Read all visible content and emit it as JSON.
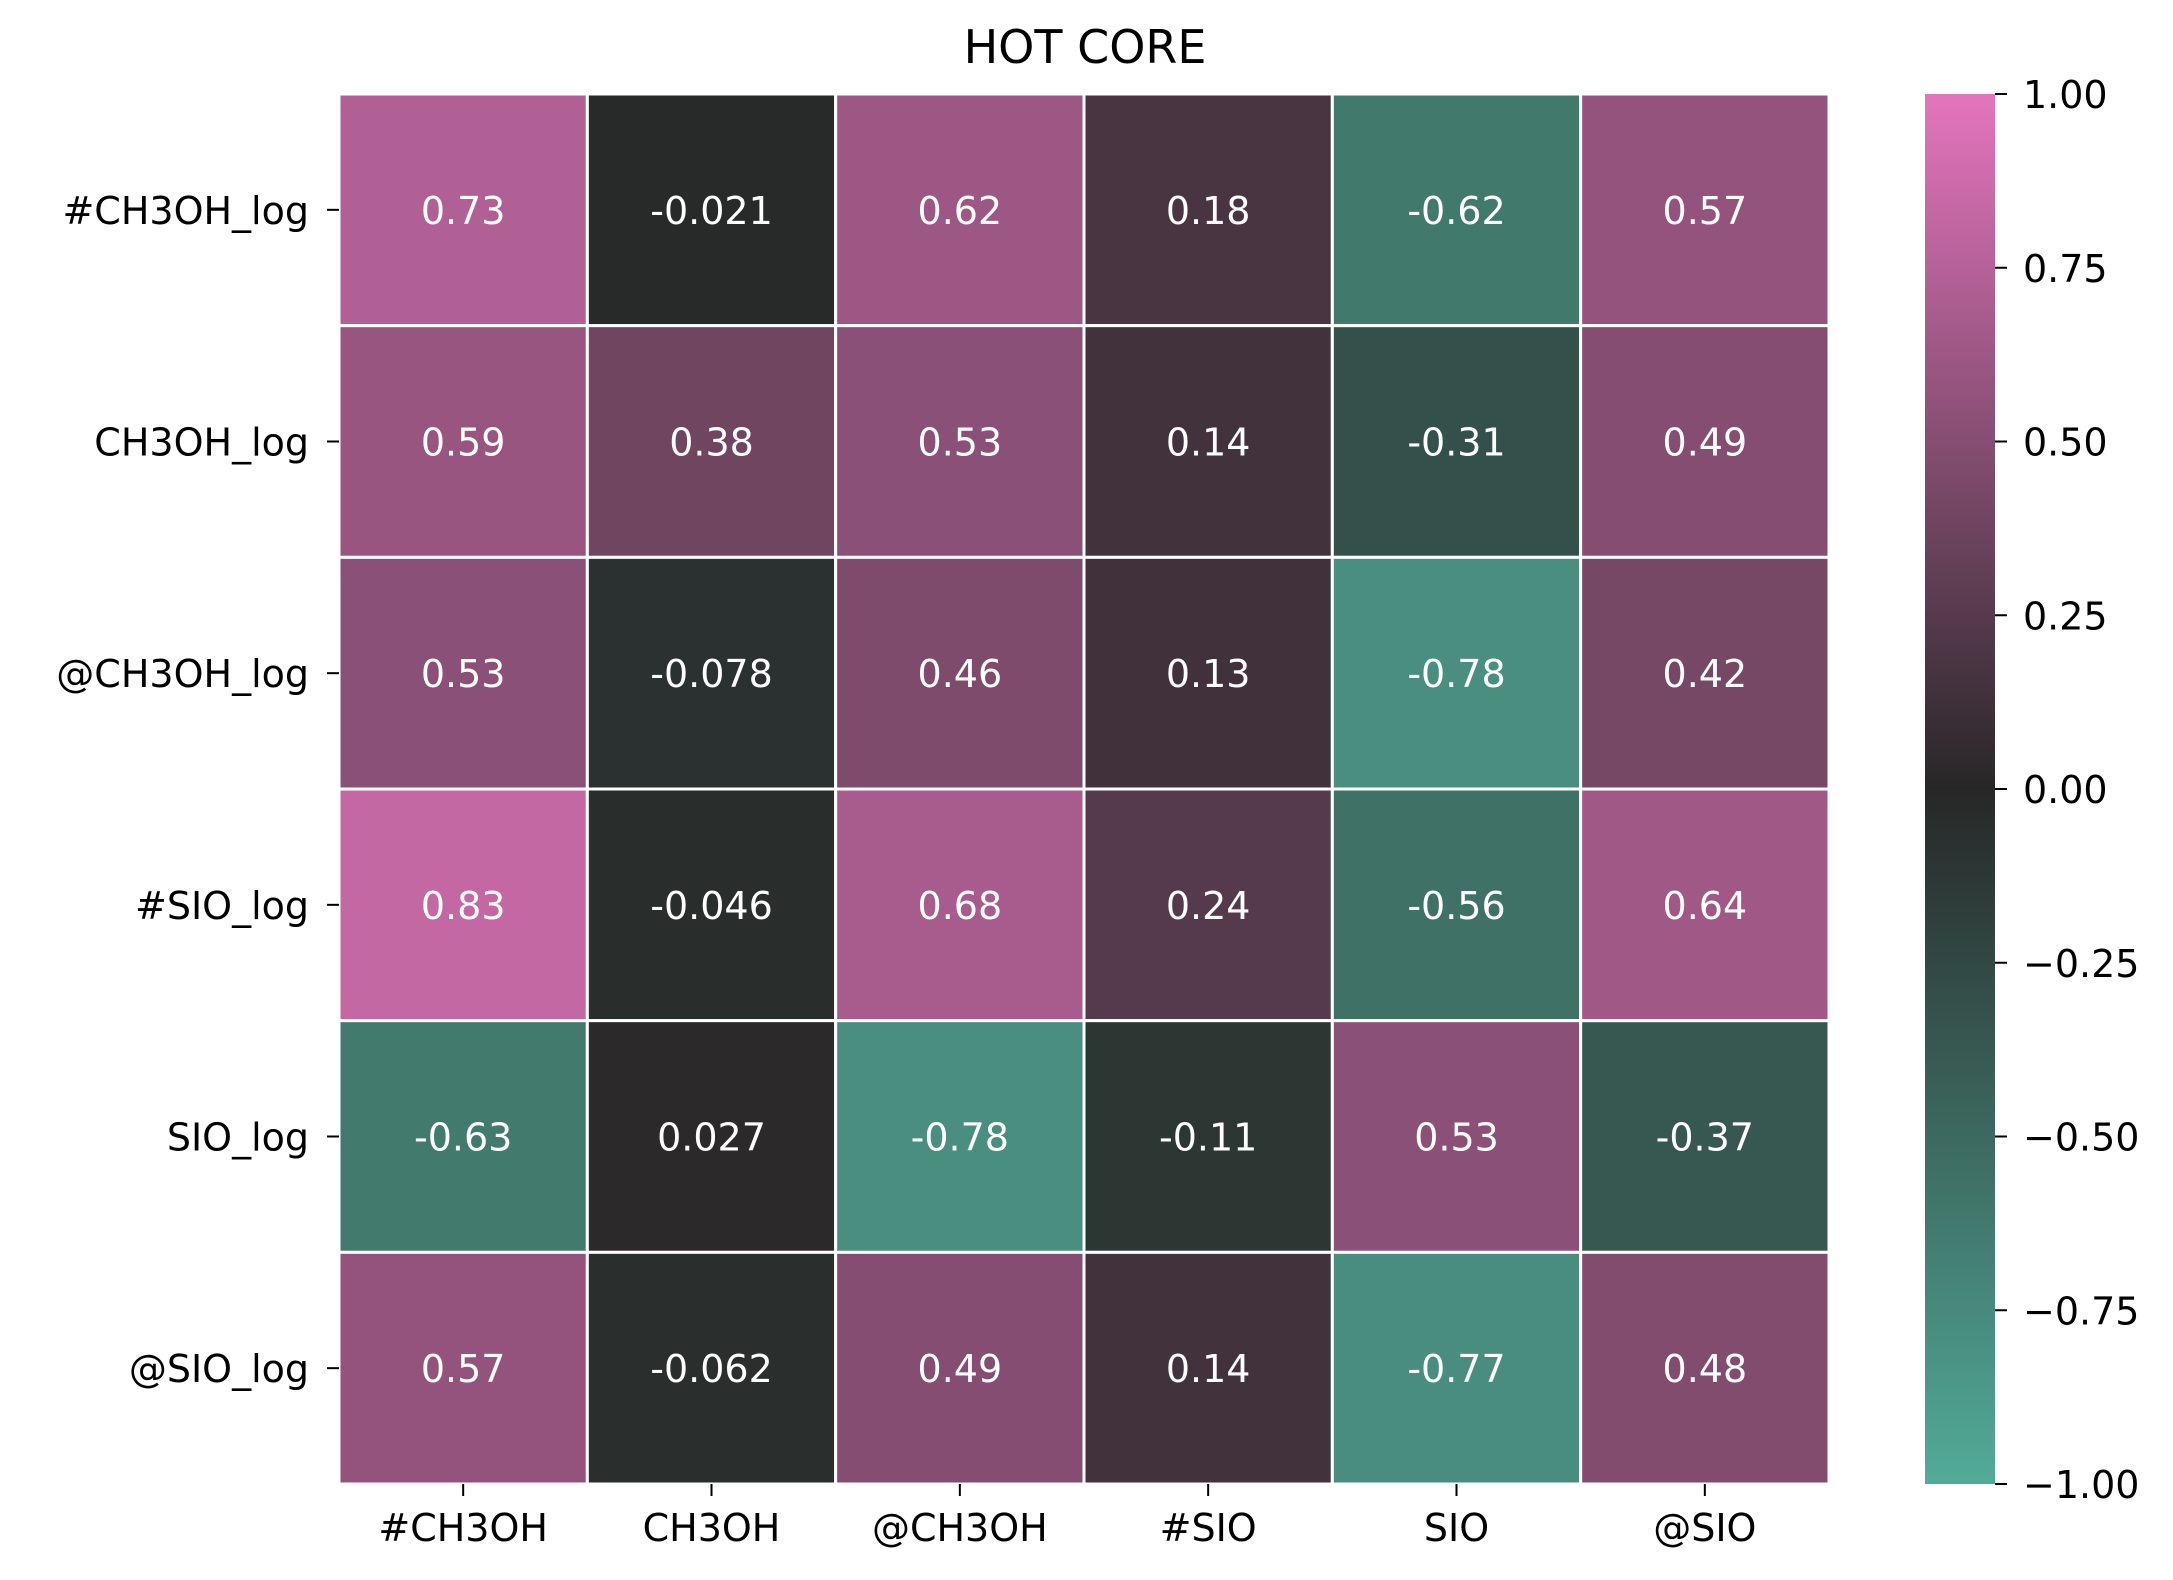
{
  "chart_data": {
    "type": "heatmap",
    "title": "HOT CORE",
    "xlabel": "",
    "ylabel": "",
    "x_categories": [
      "#CH3OH",
      "CH3OH",
      "@CH3OH",
      "#SIO",
      "SIO",
      "@SIO"
    ],
    "y_categories": [
      "#CH3OH_log",
      "CH3OH_log",
      "@CH3OH_log",
      "#SIO_log",
      "SIO_log",
      "@SIO_log"
    ],
    "values": [
      [
        0.73,
        -0.021,
        0.62,
        0.18,
        -0.62,
        0.57
      ],
      [
        0.59,
        0.38,
        0.53,
        0.14,
        -0.31,
        0.49
      ],
      [
        0.53,
        -0.078,
        0.46,
        0.13,
        -0.78,
        0.42
      ],
      [
        0.83,
        -0.046,
        0.68,
        0.24,
        -0.56,
        0.64
      ],
      [
        -0.63,
        0.027,
        -0.78,
        -0.11,
        0.53,
        -0.37
      ],
      [
        0.57,
        -0.062,
        0.49,
        0.14,
        -0.77,
        0.48
      ]
    ],
    "value_labels": [
      [
        "0.73",
        "-0.021",
        "0.62",
        "0.18",
        "-0.62",
        "0.57"
      ],
      [
        "0.59",
        "0.38",
        "0.53",
        "0.14",
        "-0.31",
        "0.49"
      ],
      [
        "0.53",
        "-0.078",
        "0.46",
        "0.13",
        "-0.78",
        "0.42"
      ],
      [
        "0.83",
        "-0.046",
        "0.68",
        "0.24",
        "-0.56",
        "0.64"
      ],
      [
        "-0.63",
        "0.027",
        "-0.78",
        "-0.11",
        "0.53",
        "-0.37"
      ],
      [
        "0.57",
        "-0.062",
        "0.49",
        "0.14",
        "-0.77",
        "0.48"
      ]
    ],
    "colorbar": {
      "range": [
        -1.0,
        1.0
      ],
      "ticks": [
        1.0,
        0.75,
        0.5,
        0.25,
        0.0,
        -0.25,
        -0.5,
        -0.75,
        -1.0
      ],
      "tick_labels": [
        "1.00",
        "0.75",
        "0.50",
        "0.25",
        "0.00",
        "−0.25",
        "−0.50",
        "−0.75",
        "−1.00"
      ],
      "colors": {
        "neg": "#52ab98",
        "mid": "#272727",
        "pos": "#e475bd"
      }
    },
    "grid_line_color": "#ffffff"
  }
}
